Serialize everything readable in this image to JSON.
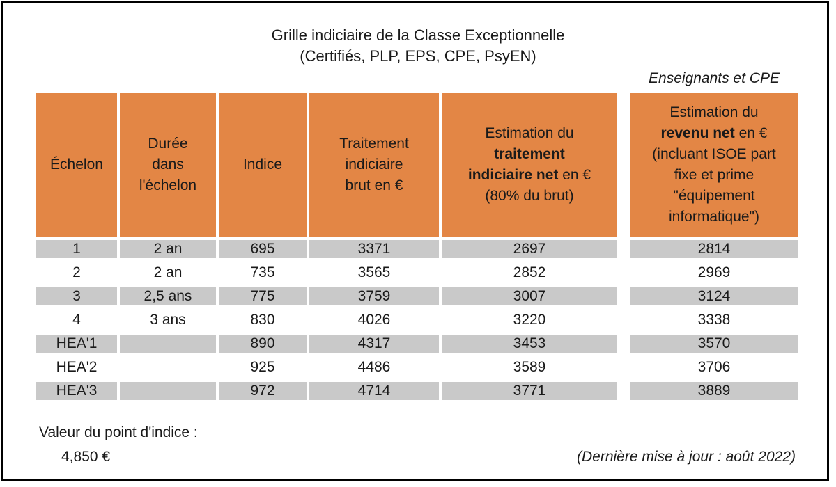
{
  "title": {
    "line1": "Grille indiciaire de la Classe Exceptionnelle",
    "line2": "(Certifiés, PLP, EPS, CPE, PsyEN)"
  },
  "aside_label": "Enseignants et CPE",
  "headers": {
    "echelon": "Échelon",
    "duree": [
      "Durée",
      "dans",
      "l'échelon"
    ],
    "indice": "Indice",
    "traitement_brut": [
      "Traitement",
      "indiciaire",
      "brut en €"
    ],
    "traitement_net": {
      "line1": "Estimation du",
      "bold1": "traitement",
      "bold2": "indiciaire net",
      "tail2": " en €",
      "line4": "(80% du brut)"
    },
    "revenu_net": {
      "line1": "Estimation du",
      "bold": "revenu net",
      "tail": " en €",
      "line3": "(incluant ISOE part",
      "line4": "fixe et prime",
      "line5": "\"équipement",
      "line6": "informatique\")"
    }
  },
  "rows": [
    {
      "echelon": "1",
      "duree": "2 an",
      "indice": "695",
      "brut": "3371",
      "net": "2697",
      "revenu": "2814"
    },
    {
      "echelon": "2",
      "duree": "2 an",
      "indice": "735",
      "brut": "3565",
      "net": "2852",
      "revenu": "2969"
    },
    {
      "echelon": "3",
      "duree": "2,5 ans",
      "indice": "775",
      "brut": "3759",
      "net": "3007",
      "revenu": "3124"
    },
    {
      "echelon": "4",
      "duree": "3 ans",
      "indice": "830",
      "brut": "4026",
      "net": "3220",
      "revenu": "3338"
    },
    {
      "echelon": "HEA'1",
      "duree": "",
      "indice": "890",
      "brut": "4317",
      "net": "3453",
      "revenu": "3570"
    },
    {
      "echelon": "HEA'2",
      "duree": "",
      "indice": "925",
      "brut": "4486",
      "net": "3589",
      "revenu": "3706"
    },
    {
      "echelon": "HEA'3",
      "duree": "",
      "indice": "972",
      "brut": "4714",
      "net": "3771",
      "revenu": "3889"
    }
  ],
  "footer": {
    "label": "Valeur du point d'indice :",
    "value": "4,850  €",
    "date": "(Dernière mise à jour : août 2022)"
  },
  "colors": {
    "header": "#e38645",
    "shade": "#c9c9c9"
  }
}
